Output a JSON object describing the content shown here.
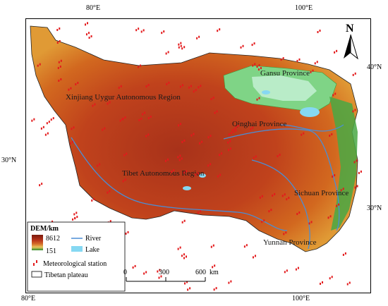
{
  "axes": {
    "top": [
      "80°E",
      "100°E"
    ],
    "bottom": [
      "80°E",
      "100°E"
    ],
    "left": [
      "30°N"
    ],
    "right": [
      "40°N",
      "30°N"
    ]
  },
  "north_arrow": "N",
  "provinces": [
    "Gansu Province",
    "Xinjiang Uygur Autonomous Region",
    "Qinghai Province",
    "Tibet Autonomous Region",
    "Sichuan Province",
    "Yunnan Province"
  ],
  "legend": {
    "title": "DEM/km",
    "dem_max": "8612",
    "dem_min": "151",
    "river": "River",
    "lake": "Lake",
    "station": "Meteorological station",
    "boundary": "Tibetan plateau"
  },
  "scale_bar": {
    "labels": [
      "0",
      "300",
      "600"
    ],
    "unit": "km"
  },
  "colors": {
    "high": "#8b2d12",
    "mid": "#d14a1c",
    "low": "#e8a03a",
    "green": "#46a832",
    "river": "#4a8ed6",
    "lake": "#86d8f2",
    "station": "#e31a1c"
  }
}
